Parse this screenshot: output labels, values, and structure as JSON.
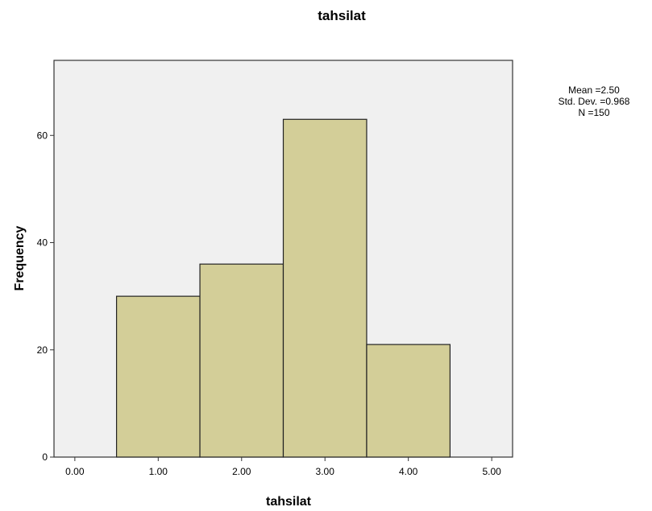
{
  "chart_data": {
    "type": "bar",
    "title": "tahsilat",
    "xlabel": "tahsilat",
    "ylabel": "Frequency",
    "categories": [
      "1.00",
      "2.00",
      "3.00",
      "4.00"
    ],
    "bins": [
      {
        "from": 0.5,
        "to": 1.5,
        "value": 30
      },
      {
        "from": 1.5,
        "to": 2.5,
        "value": 36
      },
      {
        "from": 2.5,
        "to": 3.5,
        "value": 63
      },
      {
        "from": 3.5,
        "to": 4.5,
        "value": 21
      }
    ],
    "xlim": [
      -0.25,
      5.25
    ],
    "ylim": [
      0,
      74
    ],
    "x_ticks": [
      {
        "value": 0,
        "label": "0.00"
      },
      {
        "value": 1,
        "label": "1.00"
      },
      {
        "value": 2,
        "label": "2.00"
      },
      {
        "value": 3,
        "label": "3.00"
      },
      {
        "value": 4,
        "label": "4.00"
      },
      {
        "value": 5,
        "label": "5.00"
      }
    ],
    "y_ticks": [
      {
        "value": 0,
        "label": "0"
      },
      {
        "value": 20,
        "label": "20"
      },
      {
        "value": 40,
        "label": "40"
      },
      {
        "value": 60,
        "label": "60"
      }
    ],
    "statistics": {
      "mean": "Mean =2.50",
      "std_dev": "Std. Dev. =0.968",
      "n": "N =150"
    },
    "grid": false,
    "colors": {
      "bar_fill": "#D3CE98",
      "bar_stroke": "#222222",
      "plot_background": "#F0F0F0",
      "frame": "#333333"
    }
  }
}
